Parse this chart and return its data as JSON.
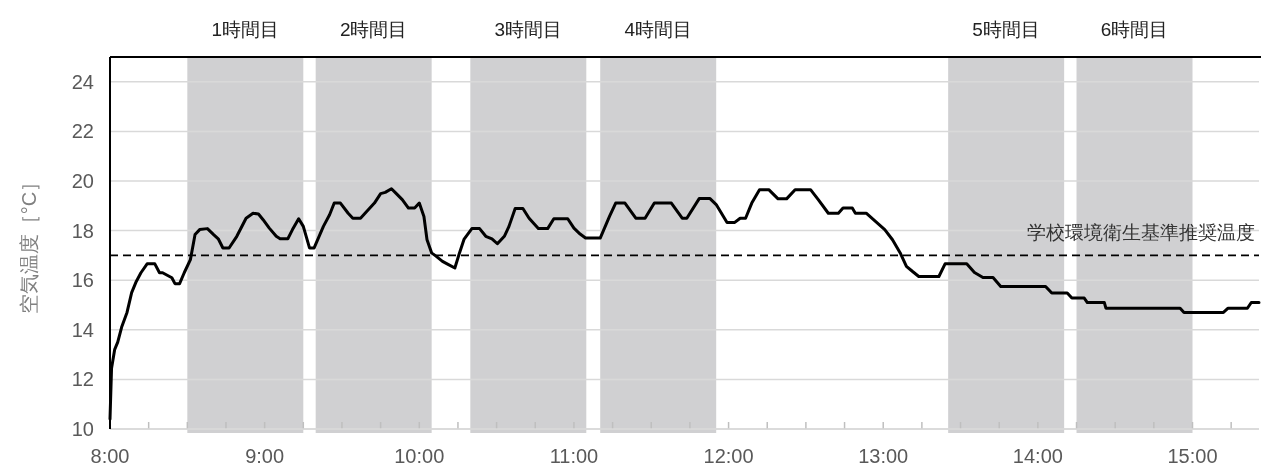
{
  "chart_data": {
    "type": "line",
    "ylabel": "空気温度［°C］",
    "xlim": [
      8,
      15.43
    ],
    "ylim": [
      10,
      25
    ],
    "yticks": [
      10,
      12,
      14,
      16,
      18,
      20,
      22,
      24
    ],
    "xticks": [
      {
        "value": 8,
        "label": "8:00"
      },
      {
        "value": 8.25,
        "label": null
      },
      {
        "value": 8.5,
        "label": null
      },
      {
        "value": 8.75,
        "label": null
      },
      {
        "value": 9,
        "label": "9:00"
      },
      {
        "value": 9.25,
        "label": null
      },
      {
        "value": 9.5,
        "label": null
      },
      {
        "value": 9.75,
        "label": null
      },
      {
        "value": 10,
        "label": "10:00"
      },
      {
        "value": 10.25,
        "label": null
      },
      {
        "value": 10.5,
        "label": null
      },
      {
        "value": 10.75,
        "label": null
      },
      {
        "value": 11,
        "label": "11:00"
      },
      {
        "value": 11.25,
        "label": null
      },
      {
        "value": 11.5,
        "label": null
      },
      {
        "value": 11.75,
        "label": null
      },
      {
        "value": 12,
        "label": "12:00"
      },
      {
        "value": 12.25,
        "label": null
      },
      {
        "value": 12.5,
        "label": null
      },
      {
        "value": 12.75,
        "label": null
      },
      {
        "value": 13,
        "label": "13:00"
      },
      {
        "value": 13.25,
        "label": null
      },
      {
        "value": 13.5,
        "label": null
      },
      {
        "value": 13.75,
        "label": null
      },
      {
        "value": 14,
        "label": "14:00"
      },
      {
        "value": 14.25,
        "label": null
      },
      {
        "value": 14.5,
        "label": null
      },
      {
        "value": 14.75,
        "label": null
      },
      {
        "value": 15,
        "label": "15:00"
      },
      {
        "value": 15.25,
        "label": null
      }
    ],
    "grid": "y",
    "marker": "none",
    "line_style": "solid",
    "ref_lines": [
      {
        "axis": "y",
        "value": 17,
        "label": "学校環境衛生基準推奨温度",
        "color": "#000000",
        "line_style": "dashed"
      }
    ],
    "bands": [
      {
        "axis": "x",
        "from": 8.5,
        "to": 9.25,
        "label": "1時間目",
        "color": "#d0d0d2"
      },
      {
        "axis": "x",
        "from": 9.33,
        "to": 10.08,
        "label": "2時間目",
        "color": "#d0d0d2"
      },
      {
        "axis": "x",
        "from": 10.33,
        "to": 11.08,
        "label": "3時間目",
        "color": "#d0d0d2"
      },
      {
        "axis": "x",
        "from": 11.17,
        "to": 11.92,
        "label": "4時間目",
        "color": "#d0d0d2"
      },
      {
        "axis": "x",
        "from": 13.42,
        "to": 14.17,
        "label": "5時間目",
        "color": "#d0d0d2"
      },
      {
        "axis": "x",
        "from": 14.25,
        "to": 15.0,
        "label": "6時間目",
        "color": "#d0d0d2"
      }
    ],
    "series": [
      {
        "color": "#000000",
        "x": [
          8.0,
          8.01,
          8.03,
          8.05,
          8.075,
          8.11,
          8.14,
          8.17,
          8.2,
          8.24,
          8.29,
          8.32,
          8.34,
          8.4,
          8.42,
          8.45,
          8.48,
          8.52,
          8.55,
          8.58,
          8.63,
          8.67,
          8.7,
          8.73,
          8.77,
          8.82,
          8.88,
          8.925,
          8.96,
          8.99,
          9.03,
          9.075,
          9.1,
          9.15,
          9.18,
          9.22,
          9.25,
          9.29,
          9.32,
          9.38,
          9.42,
          9.45,
          9.49,
          9.54,
          9.57,
          9.62,
          9.67,
          9.71,
          9.75,
          9.78,
          9.82,
          9.85,
          9.89,
          9.93,
          9.97,
          10.0,
          10.03,
          10.05,
          10.08,
          10.11,
          10.15,
          10.18,
          10.23,
          10.26,
          10.29,
          10.34,
          10.39,
          10.43,
          10.47,
          10.505,
          10.55,
          10.58,
          10.62,
          10.67,
          10.71,
          10.77,
          10.83,
          10.87,
          10.96,
          11.0,
          11.04,
          11.075,
          11.17,
          11.23,
          11.27,
          11.33,
          11.4,
          11.46,
          11.52,
          11.63,
          11.7,
          11.73,
          11.81,
          11.88,
          11.92,
          11.99,
          12.04,
          12.075,
          12.11,
          12.15,
          12.2,
          12.26,
          12.32,
          12.375,
          12.43,
          12.53,
          12.58,
          12.645,
          12.71,
          12.74,
          12.8,
          12.82,
          12.89,
          12.95,
          13.01,
          13.06,
          13.11,
          13.15,
          13.19,
          13.23,
          13.36,
          13.4,
          13.54,
          13.59,
          13.645,
          13.71,
          13.76,
          14.05,
          14.09,
          14.19,
          14.22,
          14.3,
          14.32,
          14.43,
          14.44,
          14.92,
          14.945,
          15.2,
          15.23,
          15.355,
          15.38,
          15.43
        ],
        "values": [
          10.4,
          12.45,
          13.2,
          13.5,
          14.1,
          14.7,
          15.5,
          15.95,
          16.3,
          16.66,
          16.66,
          16.3,
          16.3,
          16.1,
          15.86,
          15.86,
          16.3,
          16.83,
          17.84,
          18.04,
          18.08,
          17.84,
          17.67,
          17.3,
          17.3,
          17.77,
          18.5,
          18.7,
          18.67,
          18.44,
          18.1,
          17.77,
          17.67,
          17.67,
          18.04,
          18.48,
          18.17,
          17.3,
          17.3,
          18.17,
          18.64,
          19.11,
          19.11,
          18.7,
          18.5,
          18.5,
          18.84,
          19.11,
          19.49,
          19.54,
          19.69,
          19.5,
          19.25,
          18.91,
          18.91,
          19.11,
          18.57,
          17.63,
          17.1,
          16.96,
          16.76,
          16.66,
          16.49,
          17.1,
          17.66,
          18.08,
          18.08,
          17.77,
          17.67,
          17.47,
          17.77,
          18.17,
          18.89,
          18.89,
          18.5,
          18.08,
          18.08,
          18.48,
          18.48,
          18.1,
          17.86,
          17.7,
          17.7,
          18.57,
          19.11,
          19.11,
          18.5,
          18.5,
          19.11,
          19.11,
          18.5,
          18.5,
          19.29,
          19.29,
          19.05,
          18.33,
          18.33,
          18.5,
          18.5,
          19.11,
          19.65,
          19.65,
          19.28,
          19.28,
          19.65,
          19.65,
          19.25,
          18.7,
          18.7,
          18.91,
          18.91,
          18.7,
          18.7,
          18.37,
          18.04,
          17.63,
          17.1,
          16.56,
          16.35,
          16.15,
          16.15,
          16.66,
          16.66,
          16.31,
          16.11,
          16.11,
          15.75,
          15.75,
          15.48,
          15.48,
          15.28,
          15.28,
          15.1,
          15.1,
          14.87,
          14.87,
          14.7,
          14.7,
          14.87,
          14.87,
          15.1,
          15.1
        ]
      }
    ]
  }
}
